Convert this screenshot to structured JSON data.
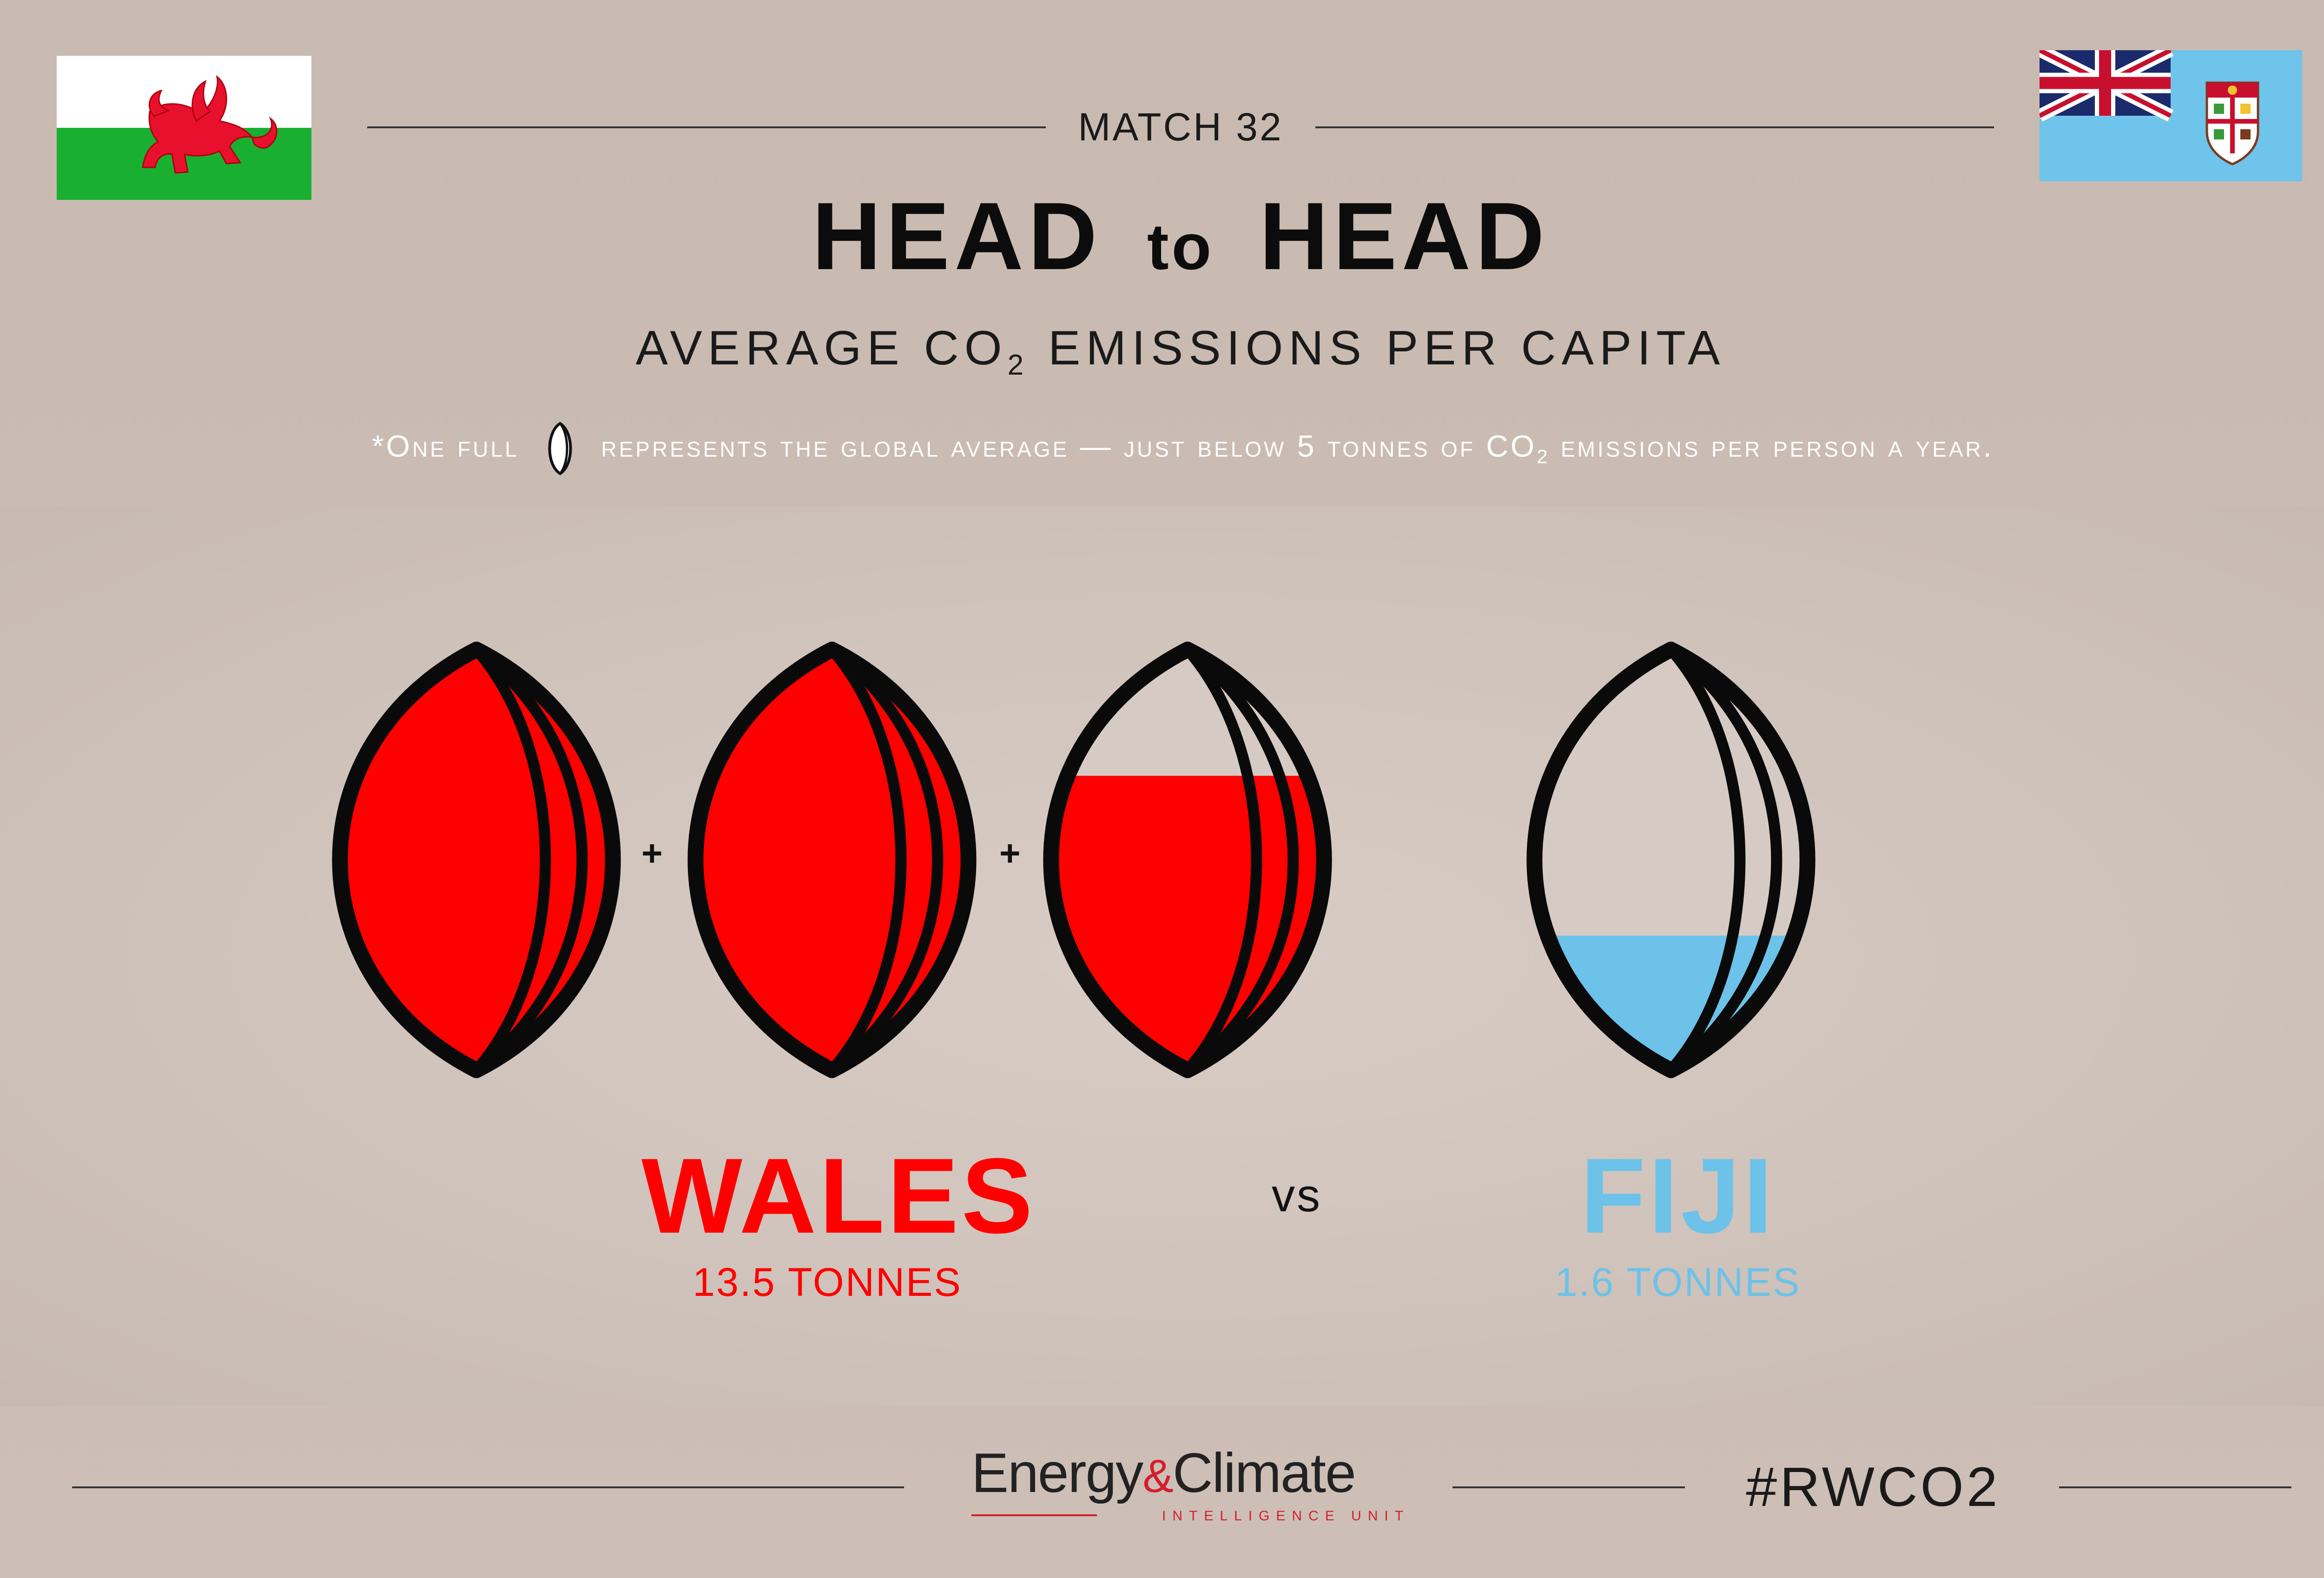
{
  "header": {
    "match_label": "MATCH 32",
    "title_left": "HEAD",
    "title_mid": "to",
    "title_right": "HEAD",
    "subtitle_pre": "AVERAGE CO",
    "subtitle_sub": "2",
    "subtitle_post": " EMISSIONS PER CAPITA",
    "note_pre": "*One full",
    "note_post": "represents the global average — just below 5 tonnes of CO",
    "note_sub": "2",
    "note_end": " emissions per person a year."
  },
  "teams": {
    "left": {
      "name": "WALES",
      "value_text": "13.5 TONNES",
      "color": "#ff0000",
      "ball_fills": [
        1,
        1,
        0.7
      ]
    },
    "right": {
      "name": "FIJI",
      "value_text": "1.6 TONNES",
      "color": "#6cc2e8",
      "ball_fills": [
        0.32
      ]
    }
  },
  "plus_symbol": "+",
  "versus": "vs",
  "footer": {
    "brand_main_a": "Energy",
    "brand_amp": "&",
    "brand_main_b": "Climate",
    "brand_sub": "INTELLIGENCE UNIT",
    "hashtag": "#RWCO2"
  },
  "colors": {
    "background": "#c9bbb1",
    "wales_red": "#ff0000",
    "fiji_blue": "#6cc2e8",
    "flag_green": "#19b031",
    "fiji_flag_blue": "#6ec4ea",
    "union_navy": "#1b2a6b"
  },
  "icons": [
    "wales-flag",
    "fiji-flag",
    "rugby-ball-icon",
    "welsh-dragon-icon",
    "union-jack-icon",
    "fiji-shield-icon"
  ]
}
